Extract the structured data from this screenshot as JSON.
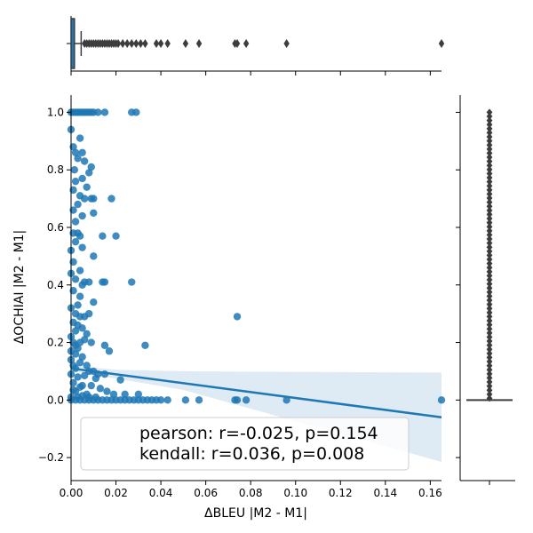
{
  "chart_data": {
    "type": "scatter",
    "xlabel": "ΔBLEU |M2 - M1|",
    "ylabel": "ΔOCHIAI |M2 - M1|",
    "xlim": [
      0,
      0.165
    ],
    "ylim": [
      -0.28,
      1.06
    ],
    "xticks": [
      "0.00",
      "0.02",
      "0.04",
      "0.06",
      "0.08",
      "0.10",
      "0.12",
      "0.14",
      "0.16"
    ],
    "yticks": [
      "−0.2",
      "0.0",
      "0.2",
      "0.4",
      "0.6",
      "0.8",
      "1.0"
    ],
    "grid": false,
    "color": "#1f77b4",
    "regression": {
      "x_start": 0,
      "y_start": 0.11,
      "x_end": 0.165,
      "y_end": -0.06,
      "ci_lower_end": -0.215,
      "ci_upper_end": 0.095
    },
    "annotation": [
      "pearson: r=-0.025, p=0.154",
      "kendall: r=0.036, p=0.008"
    ],
    "marginal_x": {
      "type": "boxplot",
      "q1": 0.0,
      "median": 0.0005,
      "q3": 0.0015,
      "whisker_high": 0.0045,
      "outliers": [
        0.006,
        0.007,
        0.008,
        0.009,
        0.01,
        0.011,
        0.012,
        0.013,
        0.014,
        0.015,
        0.016,
        0.017,
        0.018,
        0.019,
        0.02,
        0.021,
        0.023,
        0.025,
        0.027,
        0.029,
        0.031,
        0.033,
        0.038,
        0.04,
        0.043,
        0.051,
        0.057,
        0.073,
        0.074,
        0.078,
        0.096,
        0.165
      ]
    },
    "marginal_y": {
      "type": "boxplot",
      "q1": 0.0,
      "median": 0.0,
      "q3": 0.0,
      "whisker_high": 0.0,
      "outliers_dense": [
        0.0,
        1.0
      ]
    },
    "points": [
      [
        0,
        1.0
      ],
      [
        0.001,
        1.0
      ],
      [
        0.002,
        1.0
      ],
      [
        0.003,
        1.0
      ],
      [
        0.004,
        1.0
      ],
      [
        0.005,
        1.0
      ],
      [
        0.006,
        1.0
      ],
      [
        0.007,
        1.0
      ],
      [
        0.008,
        1.0
      ],
      [
        0.009,
        1.0
      ],
      [
        0.01,
        1.0
      ],
      [
        0.012,
        1.0
      ],
      [
        0.015,
        1.0
      ],
      [
        0.027,
        1.0
      ],
      [
        0.029,
        1.0
      ],
      [
        0,
        0.94
      ],
      [
        0.001,
        0.88
      ],
      [
        0.004,
        0.91
      ],
      [
        0.005,
        0.86
      ],
      [
        0.002,
        0.86
      ],
      [
        0.003,
        0.84
      ],
      [
        0.008,
        0.79
      ],
      [
        0.009,
        0.81
      ],
      [
        0.006,
        0.83
      ],
      [
        0.0015,
        0.8
      ],
      [
        0.005,
        0.77
      ],
      [
        0.007,
        0.74
      ],
      [
        0.004,
        0.71
      ],
      [
        0.002,
        0.76
      ],
      [
        0.001,
        0.73
      ],
      [
        0.006,
        0.7
      ],
      [
        0.009,
        0.7
      ],
      [
        0.01,
        0.7
      ],
      [
        0.018,
        0.7
      ],
      [
        0.003,
        0.68
      ],
      [
        0.001,
        0.66
      ],
      [
        0.005,
        0.64
      ],
      [
        0.01,
        0.65
      ],
      [
        0.002,
        0.62
      ],
      [
        0.001,
        0.58
      ],
      [
        0.003,
        0.58
      ],
      [
        0.004,
        0.57
      ],
      [
        0.014,
        0.57
      ],
      [
        0.02,
        0.57
      ],
      [
        0.002,
        0.55
      ],
      [
        0.0,
        0.52
      ],
      [
        0.005,
        0.53
      ],
      [
        0.01,
        0.5
      ],
      [
        0.001,
        0.48
      ],
      [
        0.004,
        0.45
      ],
      [
        0.0,
        0.44
      ],
      [
        0.002,
        0.42
      ],
      [
        0.005,
        0.4
      ],
      [
        0.006,
        0.41
      ],
      [
        0.008,
        0.41
      ],
      [
        0.014,
        0.41
      ],
      [
        0.015,
        0.41
      ],
      [
        0.027,
        0.41
      ],
      [
        0.001,
        0.38
      ],
      [
        0.004,
        0.36
      ],
      [
        0.01,
        0.34
      ],
      [
        0.003,
        0.33
      ],
      [
        0.0,
        0.32
      ],
      [
        0.002,
        0.3
      ],
      [
        0.004,
        0.29
      ],
      [
        0.006,
        0.29
      ],
      [
        0.008,
        0.3
      ],
      [
        0.074,
        0.29
      ],
      [
        0.001,
        0.27
      ],
      [
        0.003,
        0.26
      ],
      [
        0.005,
        0.25
      ],
      [
        0.002,
        0.24
      ],
      [
        0.007,
        0.23
      ],
      [
        0.0,
        0.22
      ],
      [
        0.001,
        0.2
      ],
      [
        0.004,
        0.2
      ],
      [
        0.006,
        0.21
      ],
      [
        0.009,
        0.2
      ],
      [
        0.015,
        0.19
      ],
      [
        0.033,
        0.19
      ],
      [
        0.003,
        0.18
      ],
      [
        0.017,
        0.17
      ],
      [
        0.002,
        0.16
      ],
      [
        0.005,
        0.15
      ],
      [
        0.0,
        0.14
      ],
      [
        0.004,
        0.13
      ],
      [
        0.007,
        0.12
      ],
      [
        0.002,
        0.11
      ],
      [
        0.008,
        0.1
      ],
      [
        0.01,
        0.1
      ],
      [
        0.012,
        0.09
      ],
      [
        0.015,
        0.09
      ],
      [
        0.006,
        0.085
      ],
      [
        0.003,
        0.08
      ],
      [
        0.022,
        0.07
      ],
      [
        0.011,
        0.075
      ],
      [
        0.001,
        0.06
      ],
      [
        0.005,
        0.05
      ],
      [
        0.009,
        0.05
      ],
      [
        0.013,
        0.04
      ],
      [
        0.016,
        0.03
      ],
      [
        0.019,
        0.02
      ],
      [
        0.024,
        0.02
      ],
      [
        0.03,
        0.02
      ],
      [
        0.002,
        0.03
      ],
      [
        0.007,
        0.02
      ],
      [
        0,
        0
      ],
      [
        0.002,
        0
      ],
      [
        0.004,
        0
      ],
      [
        0.006,
        0
      ],
      [
        0.008,
        0
      ],
      [
        0.01,
        0
      ],
      [
        0.012,
        0
      ],
      [
        0.014,
        0
      ],
      [
        0.016,
        0
      ],
      [
        0.018,
        0
      ],
      [
        0.02,
        0
      ],
      [
        0.022,
        0
      ],
      [
        0.024,
        0
      ],
      [
        0.026,
        0
      ],
      [
        0.028,
        0
      ],
      [
        0.03,
        0
      ],
      [
        0.032,
        0
      ],
      [
        0.034,
        0
      ],
      [
        0.036,
        0
      ],
      [
        0.038,
        0
      ],
      [
        0.04,
        0
      ],
      [
        0.043,
        0
      ],
      [
        0.051,
        0
      ],
      [
        0.057,
        0
      ],
      [
        0.073,
        0
      ],
      [
        0.074,
        0
      ],
      [
        0.078,
        0
      ],
      [
        0.096,
        0
      ],
      [
        0.165,
        0
      ],
      [
        0.0,
        0.01
      ],
      [
        0.003,
        0.01
      ],
      [
        0.005,
        0.015
      ],
      [
        0.008,
        0.01
      ],
      [
        0.011,
        0.01
      ],
      [
        0.001,
        0.035
      ],
      [
        0.004,
        0.045
      ],
      [
        0.0,
        0.09
      ],
      [
        0.001,
        0.12
      ],
      [
        0.0,
        0.17
      ],
      [
        0.002,
        0.19
      ]
    ]
  }
}
